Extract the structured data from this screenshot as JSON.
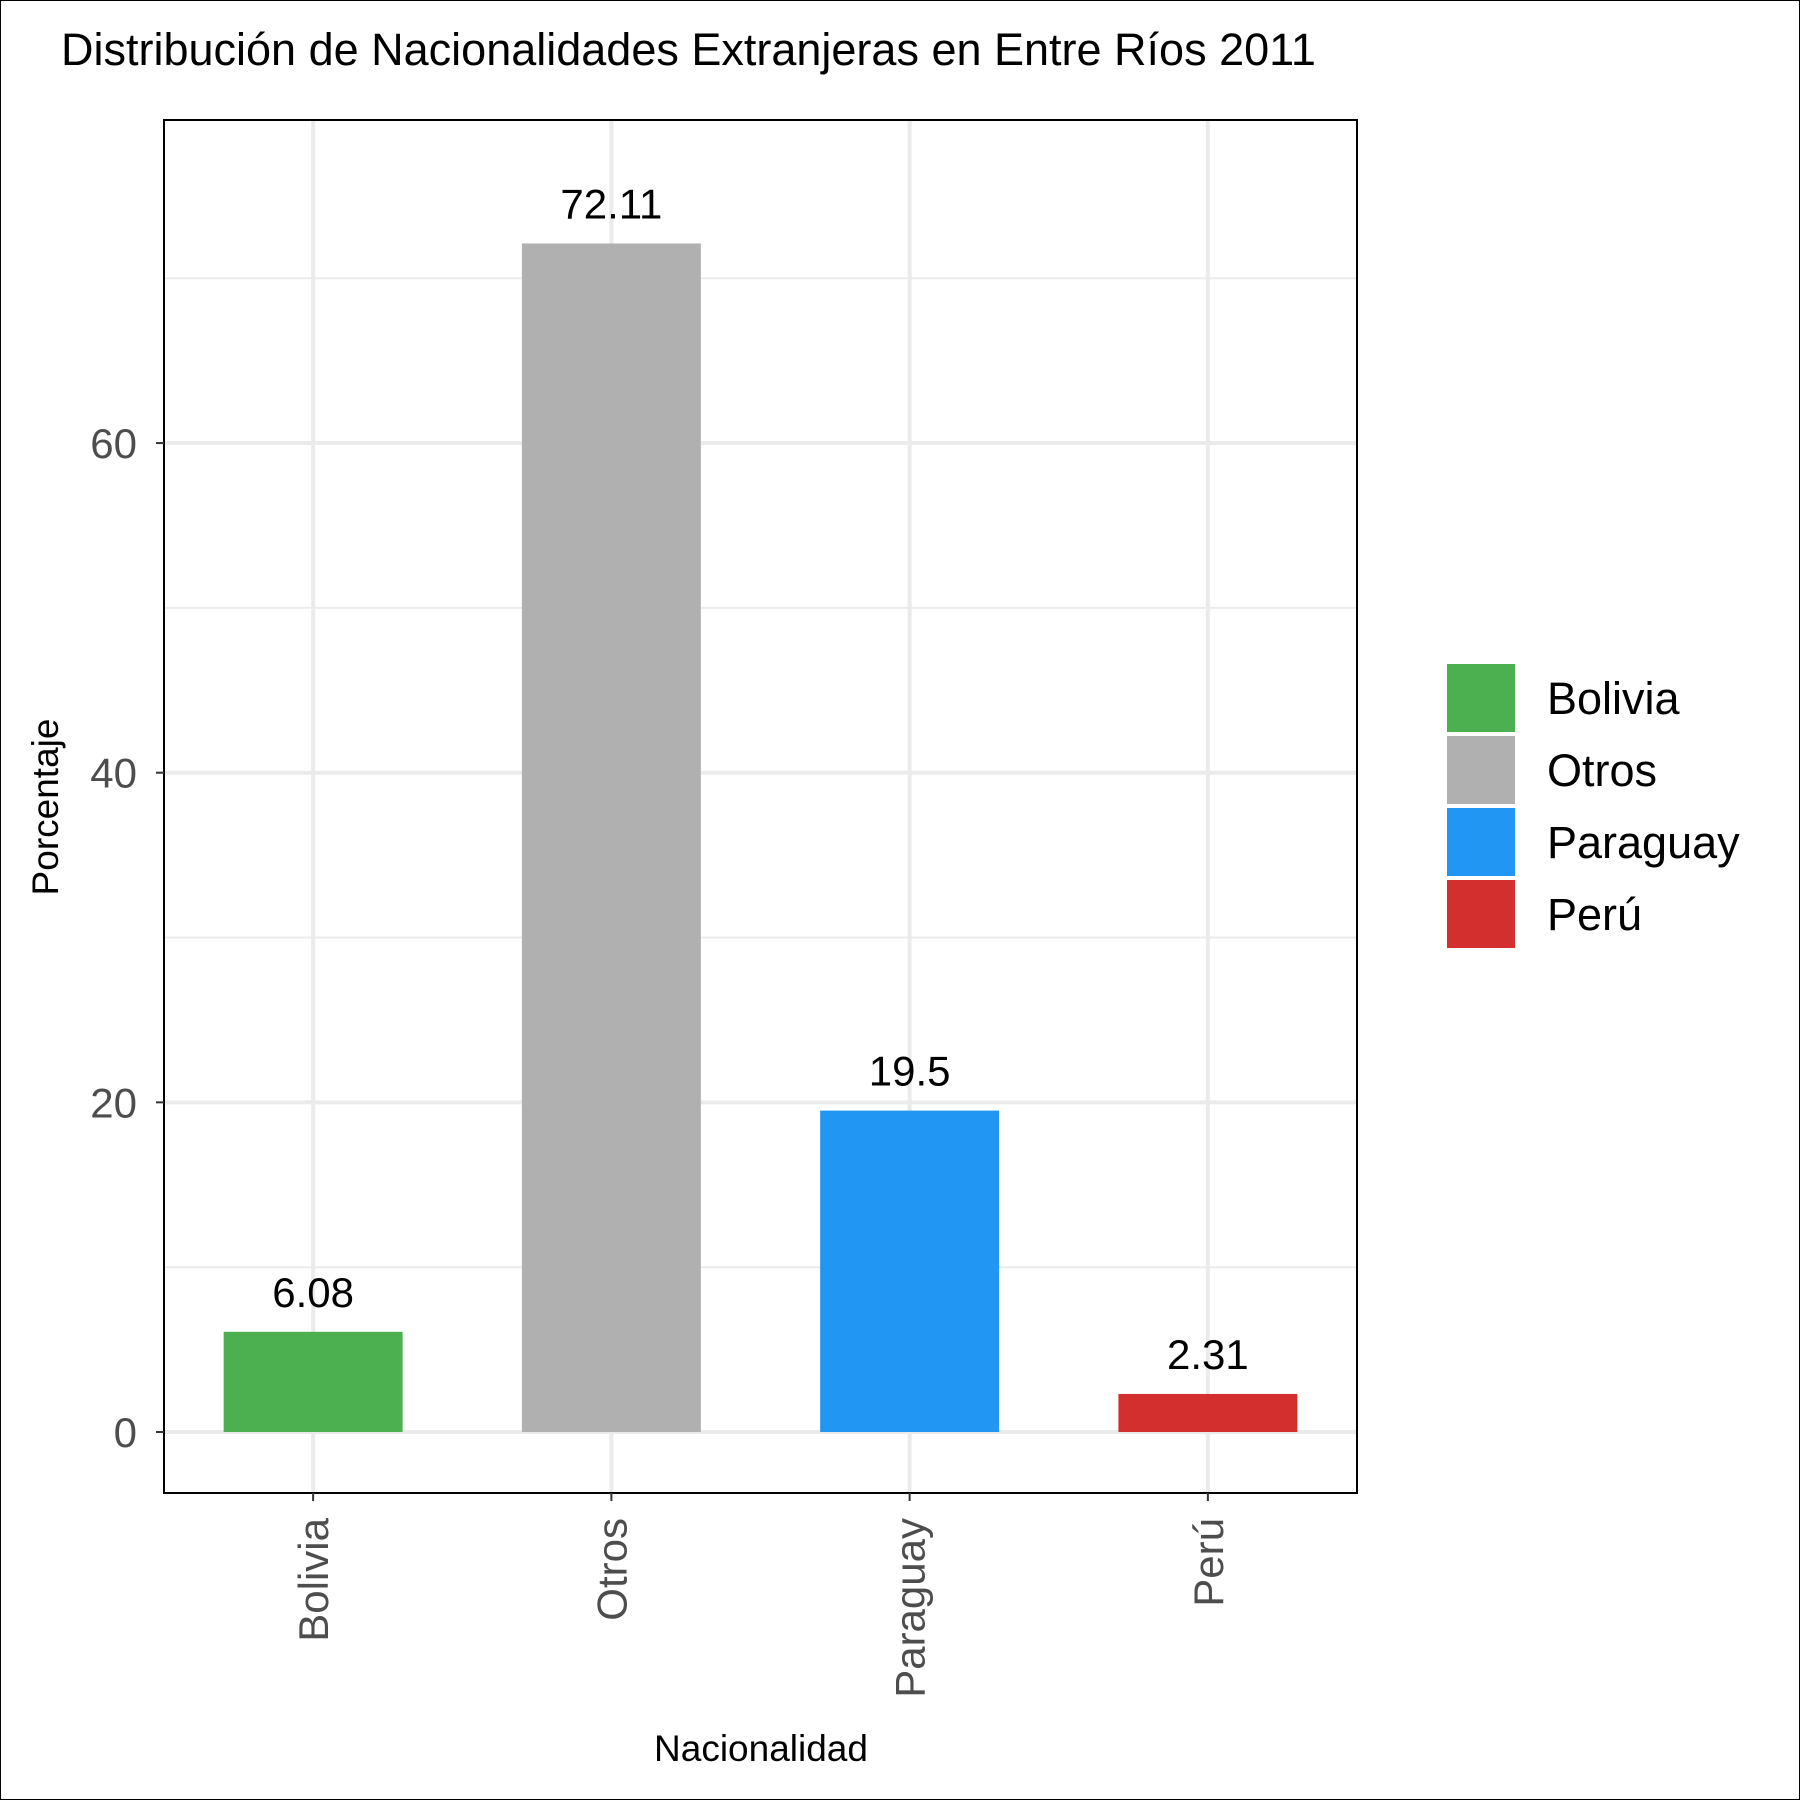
{
  "chart_data": {
    "type": "bar",
    "title": "Distribución de Nacionalidades Extranjeras en Entre Ríos 2011",
    "xlabel": "Nacionalidad",
    "ylabel": "Porcentaje",
    "categories": [
      "Bolivia",
      "Otros",
      "Paraguay",
      "Perú"
    ],
    "values": [
      6.08,
      72.11,
      19.5,
      2.31
    ],
    "data_labels": [
      "6.08",
      "72.11",
      "19.5",
      "2.31"
    ],
    "colors": [
      "#4caf50",
      "#b0b0b0",
      "#2196f3",
      "#d32f2f"
    ],
    "y_ticks": [
      0,
      20,
      40,
      60
    ],
    "y_tick_labels": [
      "0",
      "20",
      "40",
      "60"
    ],
    "ylim": [
      -3.7,
      79.6
    ],
    "grid": true,
    "legend": {
      "position": "right",
      "entries": [
        "Bolivia",
        "Otros",
        "Paraguay",
        "Perú"
      ]
    }
  }
}
